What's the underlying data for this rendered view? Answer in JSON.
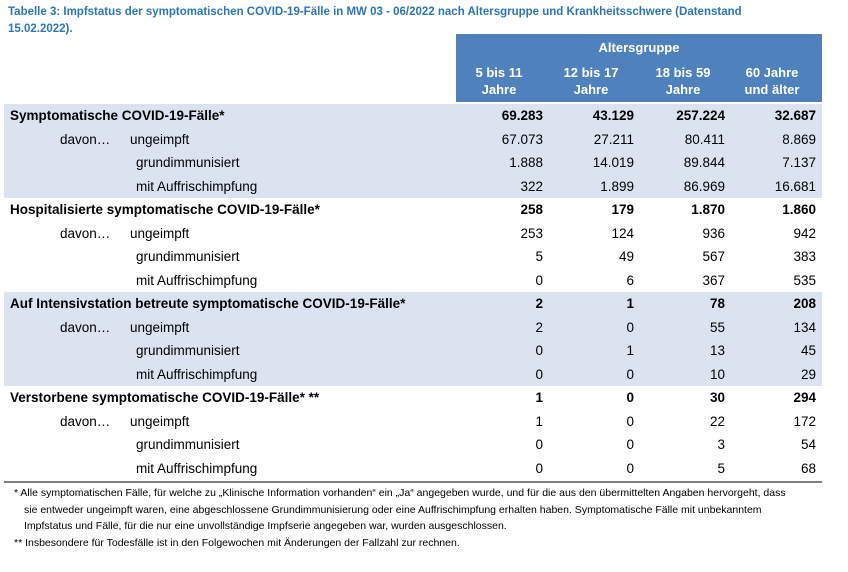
{
  "title": "Tabelle 3: Impfstatus der symptomatischen COVID-19-Fälle in MW 03 - 06/2022 nach Altersgruppe und Krankheitsschwere (Datenstand 15.02.2022).",
  "header": {
    "group": "Altersgruppe",
    "cols": [
      [
        "5 bis 11",
        "Jahre"
      ],
      [
        "12 bis 17",
        "Jahre"
      ],
      [
        "18 bis 59",
        "Jahre"
      ],
      [
        "60 Jahre",
        "und älter"
      ]
    ]
  },
  "davon": "davon…",
  "groups": [
    {
      "label": "Symptomatische COVID-19-Fälle*",
      "values": [
        "69.283",
        "43.129",
        "257.224",
        "32.687"
      ],
      "rows": [
        {
          "label": "ungeimpft",
          "values": [
            "67.073",
            "27.211",
            "80.411",
            "8.869"
          ]
        },
        {
          "label": "grundimmunisiert",
          "values": [
            "1.888",
            "14.019",
            "89.844",
            "7.137"
          ]
        },
        {
          "label": "mit Auffrischimpfung",
          "values": [
            "322",
            "1.899",
            "86.969",
            "16.681"
          ]
        }
      ]
    },
    {
      "label": "Hospitalisierte symptomatische COVID-19-Fälle*",
      "values": [
        "258",
        "179",
        "1.870",
        "1.860"
      ],
      "rows": [
        {
          "label": "ungeimpft",
          "values": [
            "253",
            "124",
            "936",
            "942"
          ]
        },
        {
          "label": "grundimmunisiert",
          "values": [
            "5",
            "49",
            "567",
            "383"
          ]
        },
        {
          "label": "mit Auffrischimpfung",
          "values": [
            "0",
            "6",
            "367",
            "535"
          ]
        }
      ]
    },
    {
      "label": "Auf Intensivstation betreute symptomatische COVID-19-Fälle*",
      "values": [
        "2",
        "1",
        "78",
        "208"
      ],
      "rows": [
        {
          "label": "ungeimpft",
          "values": [
            "2",
            "0",
            "55",
            "134"
          ]
        },
        {
          "label": "grundimmunisiert",
          "values": [
            "0",
            "1",
            "13",
            "45"
          ]
        },
        {
          "label": "mit Auffrischimpfung",
          "values": [
            "0",
            "0",
            "10",
            "29"
          ]
        }
      ]
    },
    {
      "label": "Verstorbene symptomatische COVID-19-Fälle* **",
      "values": [
        "1",
        "0",
        "30",
        "294"
      ],
      "rows": [
        {
          "label": "ungeimpft",
          "values": [
            "1",
            "0",
            "22",
            "172"
          ]
        },
        {
          "label": "grundimmunisiert",
          "values": [
            "0",
            "0",
            "3",
            "54"
          ]
        },
        {
          "label": "mit Auffrischimpfung",
          "values": [
            "0",
            "0",
            "5",
            "68"
          ]
        }
      ]
    }
  ],
  "footnotes": [
    "* Alle symptomatischen Fälle, für welche zu „Klinische Information vorhanden“ ein „Ja“ angegeben wurde, und für die aus den übermittelten Angaben hervorgeht, dass sie entweder ungeimpft waren, eine abgeschlossene Grundimmunisierung oder eine Auffrischimpfung erhalten haben. Symptomatische Fälle mit unbekanntem Impfstatus und Fälle, für die nur eine unvollständige Impfserie angegeben war, wurden ausgeschlossen.",
    "** Insbesondere für Todesfälle ist in den Folgewochen mit Änderungen der Fallzahl zur rechnen."
  ]
}
